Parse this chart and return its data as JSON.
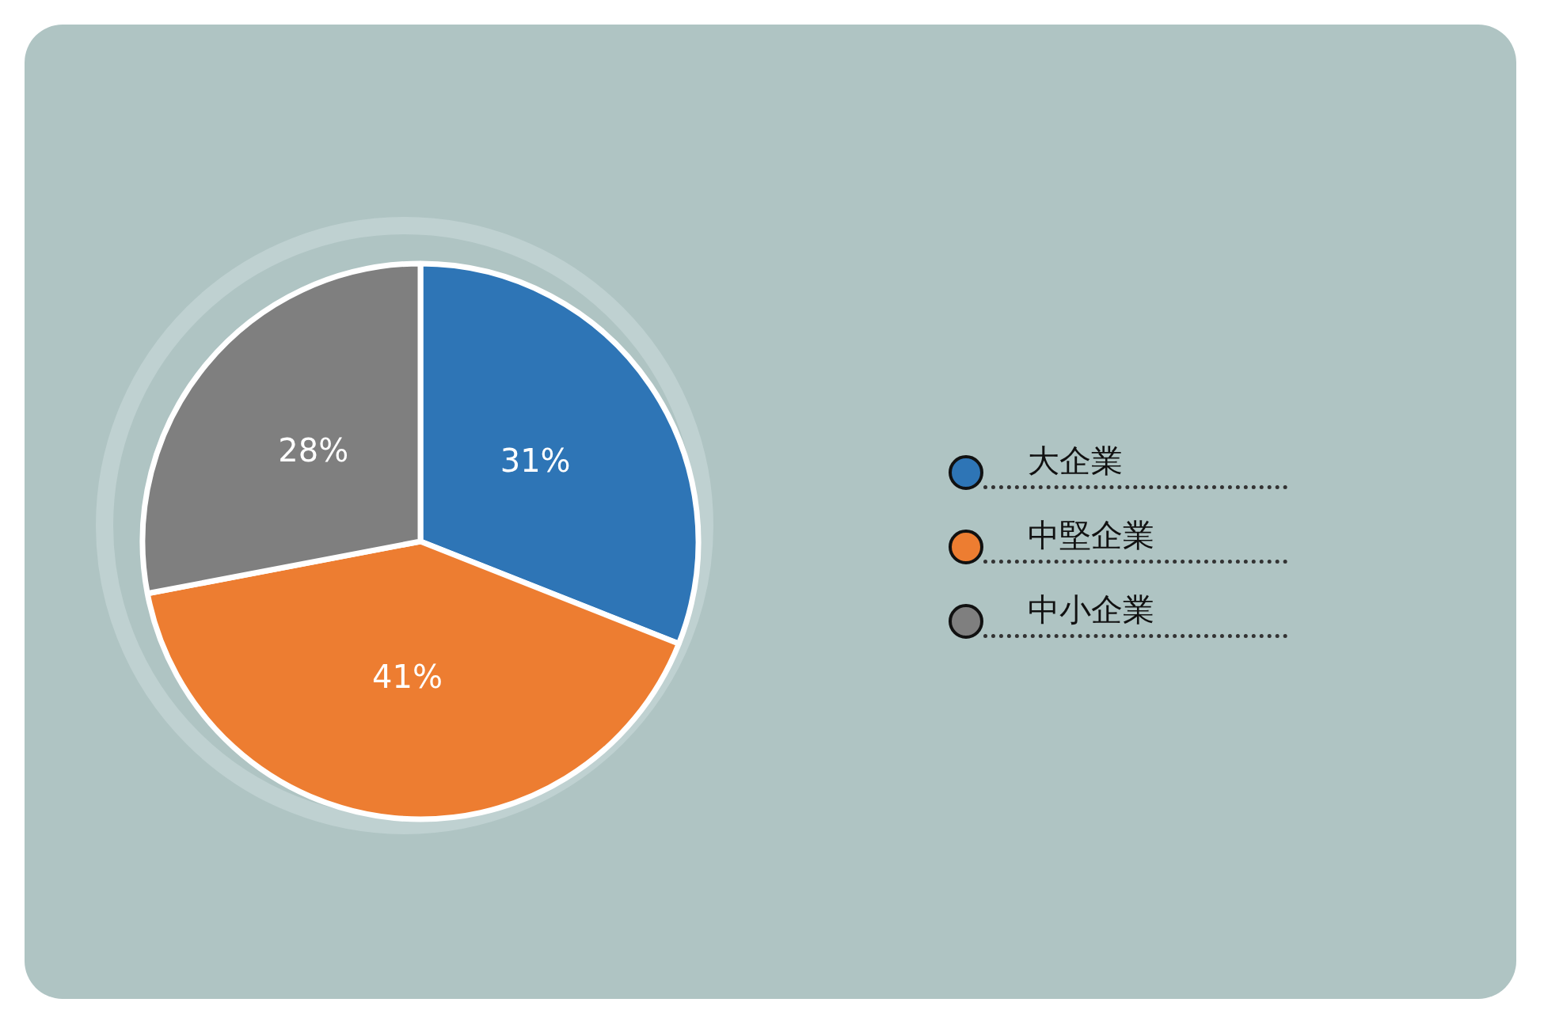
{
  "chart_data": {
    "type": "pie",
    "categories": [
      "大企業",
      "中堅企業",
      "中小企業"
    ],
    "values": [
      31,
      41,
      28
    ],
    "colors": [
      "#2e75b6",
      "#ed7d31",
      "#7f7f7f"
    ],
    "value_labels": [
      "31%",
      "41%",
      "28%"
    ],
    "legend": "right"
  }
}
